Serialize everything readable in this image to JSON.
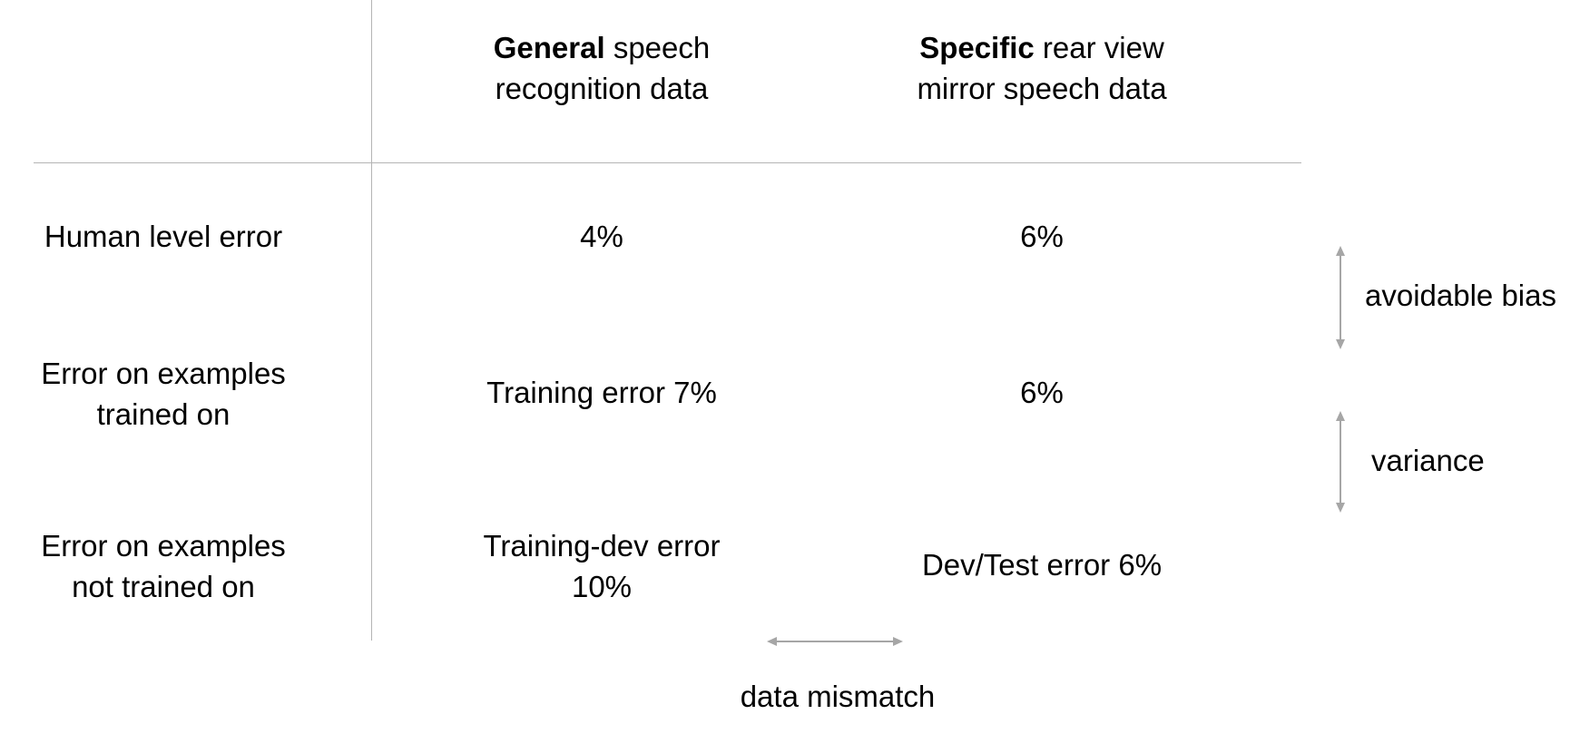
{
  "columns": {
    "general": {
      "bold": "General",
      "rest": " speech",
      "line2": "recognition data"
    },
    "specific": {
      "bold": "Specific",
      "rest": " rear view",
      "line2": "mirror speech data"
    }
  },
  "rows": {
    "human": {
      "label": "Human level error",
      "general": "4%",
      "specific": "6%"
    },
    "trained": {
      "label_line1": "Error on examples",
      "label_line2": "trained on",
      "general": "Training error 7%",
      "specific": "6%"
    },
    "not_trained": {
      "label_line1": "Error on examples",
      "label_line2": "not trained on",
      "general_line1": "Training-dev error",
      "general_line2": "10%",
      "specific": "Dev/Test error 6%"
    }
  },
  "annotations": {
    "avoidable_bias": "avoidable bias",
    "variance": "variance",
    "data_mismatch": "data mismatch"
  },
  "colors": {
    "line": "#b4b4b4",
    "arrow": "#a6a6a6",
    "text": "#000000"
  }
}
